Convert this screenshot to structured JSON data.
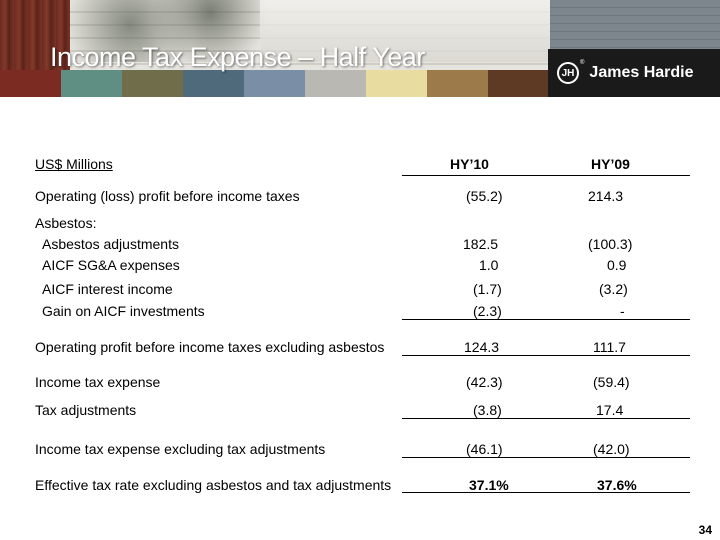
{
  "header": {
    "title": "Income Tax Expense – Half Year",
    "brand": "James Hardie",
    "brand_mark": "JH",
    "swatch_colors": [
      "#7b2b22",
      "#5f8e82",
      "#6f6d4a",
      "#4f6a7a",
      "#7a8fa6",
      "#b9b8b3",
      "#e9dca1",
      "#9d7a4a",
      "#5e3a24"
    ]
  },
  "table": {
    "header": {
      "label": "US$ Millions",
      "col1": "HY’10",
      "col2": "HY’09"
    },
    "rows": [
      {
        "label": "Operating (loss) profit before income taxes",
        "col1": "(55.2)",
        "col2": "214.3"
      },
      {
        "label": "Asbestos:",
        "col1": "",
        "col2": ""
      },
      {
        "label": "Asbestos adjustments",
        "col1": "182.5",
        "col2": "(100.3)"
      },
      {
        "label": "AICF SG&A expenses",
        "col1": "1.0",
        "col2": "0.9"
      },
      {
        "label": "AICF interest income",
        "col1": "(1.7)",
        "col2": "(3.2)"
      },
      {
        "label": "Gain on AICF investments",
        "col1": "(2.3)",
        "col2": "-"
      },
      {
        "label": "Operating profit before income taxes excluding asbestos",
        "col1": "124.3",
        "col2": "111.7"
      },
      {
        "label": "Income tax expense",
        "col1": "(42.3)",
        "col2": "(59.4)"
      },
      {
        "label": "Tax adjustments",
        "col1": "(3.8)",
        "col2": "17.4"
      },
      {
        "label": "Income tax expense excluding tax adjustments",
        "col1": "(46.1)",
        "col2": "(42.0)"
      },
      {
        "label": "Effective tax rate excluding asbestos and tax adjustments",
        "col1": "37.1%",
        "col2": "37.6%"
      }
    ]
  },
  "footer": {
    "page_number": "34"
  }
}
